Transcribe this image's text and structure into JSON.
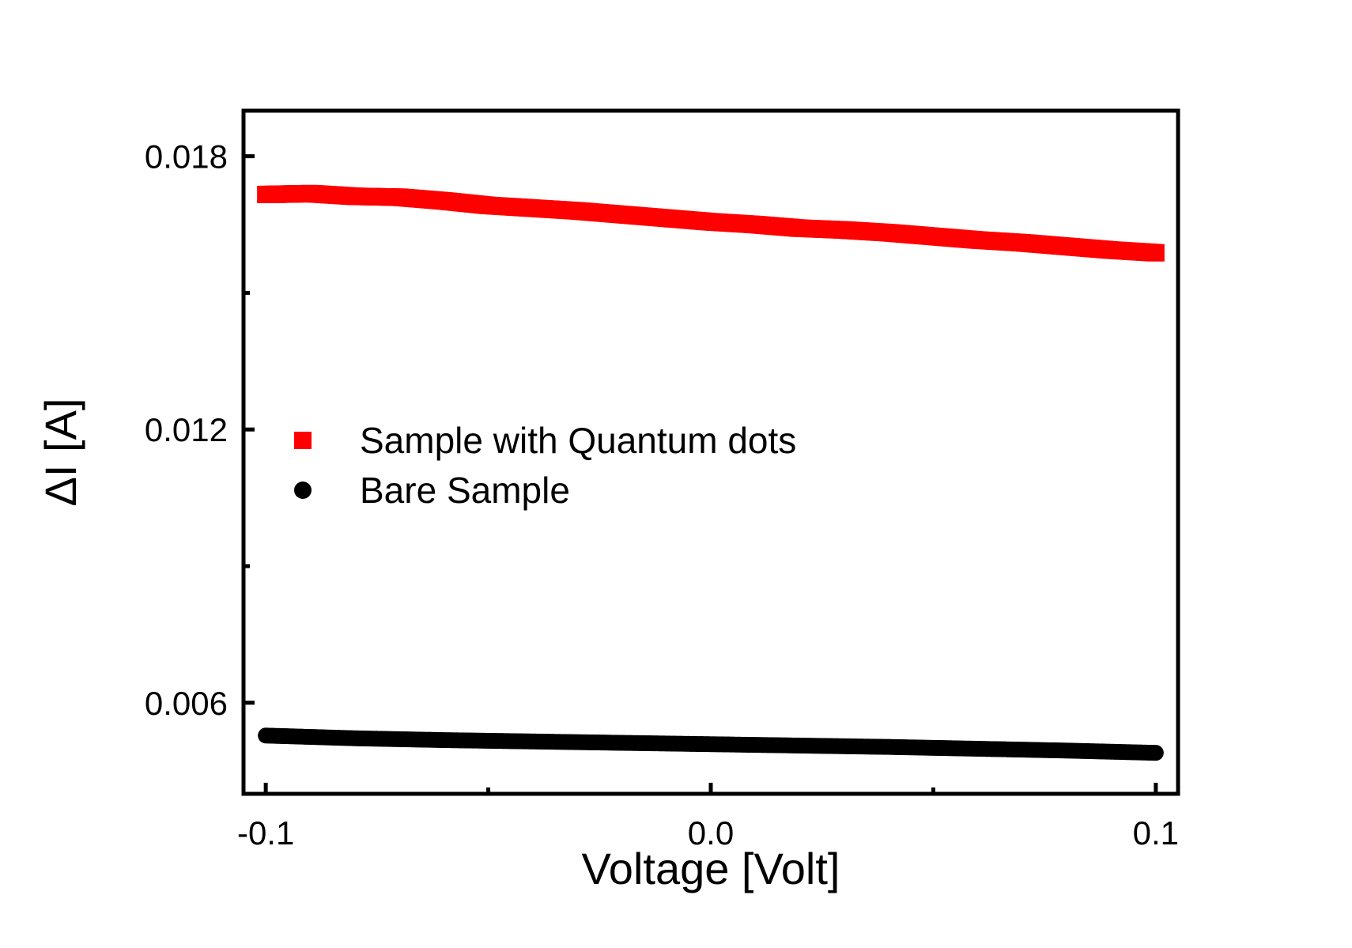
{
  "chart_data": {
    "type": "scatter",
    "title": "",
    "xlabel": "Voltage [Volt]",
    "ylabel": "ΔI [A]",
    "xlim": [
      -0.105,
      0.105
    ],
    "ylim": [
      0.004,
      0.019
    ],
    "x_ticks": [
      -0.1,
      0.0,
      0.1
    ],
    "x_tick_labels": [
      "-0.1",
      "0.0",
      "0.1"
    ],
    "x_minor_ticks": [
      -0.05,
      0.05
    ],
    "y_ticks": [
      0.006,
      0.012,
      0.018
    ],
    "y_tick_labels": [
      "0.006",
      "0.012",
      "0.018"
    ],
    "y_minor_ticks": [
      0.009,
      0.015
    ],
    "grid": false,
    "legend_position": "middle-left",
    "x_start": -0.1,
    "x_end": 0.1,
    "series": [
      {
        "name": "Sample with Quantum dots",
        "marker": "square",
        "color": "#ff0000",
        "points": [
          [
            -0.1,
            0.01716
          ],
          [
            -0.09,
            0.01718
          ],
          [
            -0.08,
            0.01712
          ],
          [
            -0.07,
            0.0171
          ],
          [
            -0.06,
            0.01702
          ],
          [
            -0.05,
            0.01692
          ],
          [
            -0.04,
            0.01686
          ],
          [
            -0.03,
            0.0168
          ],
          [
            -0.02,
            0.01672
          ],
          [
            -0.01,
            0.01664
          ],
          [
            0.0,
            0.01656
          ],
          [
            0.01,
            0.0165
          ],
          [
            0.02,
            0.01642
          ],
          [
            0.03,
            0.01638
          ],
          [
            0.04,
            0.01632
          ],
          [
            0.05,
            0.01624
          ],
          [
            0.06,
            0.01616
          ],
          [
            0.07,
            0.0161
          ],
          [
            0.08,
            0.01602
          ],
          [
            0.09,
            0.01594
          ],
          [
            0.1,
            0.01588
          ]
        ]
      },
      {
        "name": "Bare Sample",
        "marker": "circle",
        "color": "#000000",
        "points": [
          [
            -0.1,
            0.00528
          ],
          [
            -0.08,
            0.00522
          ],
          [
            -0.06,
            0.00518
          ],
          [
            -0.04,
            0.00515
          ],
          [
            -0.02,
            0.00512
          ],
          [
            0.0,
            0.00509
          ],
          [
            0.02,
            0.00506
          ],
          [
            0.04,
            0.00503
          ],
          [
            0.06,
            0.00499
          ],
          [
            0.08,
            0.00495
          ],
          [
            0.1,
            0.0049
          ]
        ]
      }
    ]
  }
}
